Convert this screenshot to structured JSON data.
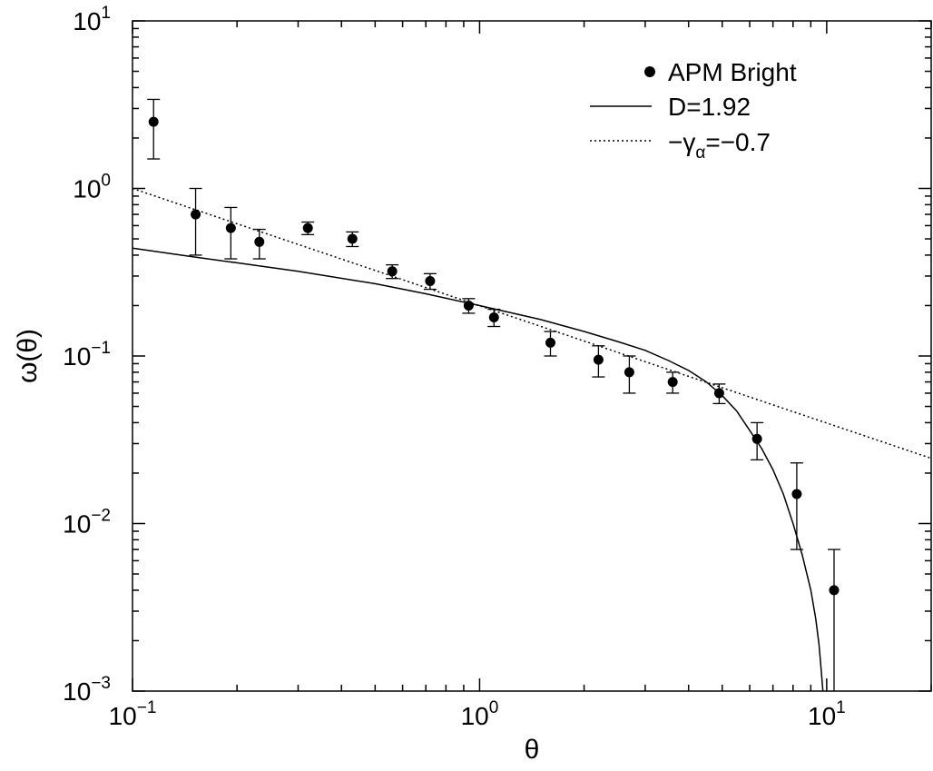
{
  "chart_data": {
    "type": "scatter",
    "xlabel": "θ",
    "ylabel": "ω(θ)",
    "x_scale": "log",
    "y_scale": "log",
    "xlim": [
      0.1,
      20
    ],
    "ylim": [
      0.001,
      10
    ],
    "x_ticks": [
      {
        "value": 0.1,
        "base": "10",
        "exp": "−1"
      },
      {
        "value": 1,
        "base": "10",
        "exp": "0"
      },
      {
        "value": 10,
        "base": "10",
        "exp": "1"
      }
    ],
    "y_ticks": [
      {
        "value": 0.001,
        "base": "10",
        "exp": "−3"
      },
      {
        "value": 0.01,
        "base": "10",
        "exp": "−2"
      },
      {
        "value": 0.1,
        "base": "10",
        "exp": "−1"
      },
      {
        "value": 1,
        "base": "10",
        "exp": "0"
      },
      {
        "value": 10,
        "base": "10",
        "exp": "1"
      }
    ],
    "grid": false,
    "legend_position": "top-right",
    "series": [
      {
        "name": "APM Bright",
        "kind": "points_with_errorbars",
        "points": [
          {
            "x": 0.115,
            "y": 2.5,
            "lo": 1.5,
            "hi": 3.4
          },
          {
            "x": 0.152,
            "y": 0.7,
            "lo": 0.4,
            "hi": 1.0
          },
          {
            "x": 0.192,
            "y": 0.58,
            "lo": 0.38,
            "hi": 0.77
          },
          {
            "x": 0.232,
            "y": 0.48,
            "lo": 0.38,
            "hi": 0.57
          },
          {
            "x": 0.32,
            "y": 0.58,
            "lo": 0.53,
            "hi": 0.63
          },
          {
            "x": 0.43,
            "y": 0.5,
            "lo": 0.45,
            "hi": 0.55
          },
          {
            "x": 0.56,
            "y": 0.32,
            "lo": 0.29,
            "hi": 0.35
          },
          {
            "x": 0.72,
            "y": 0.28,
            "lo": 0.25,
            "hi": 0.31
          },
          {
            "x": 0.93,
            "y": 0.2,
            "lo": 0.18,
            "hi": 0.22
          },
          {
            "x": 1.1,
            "y": 0.17,
            "lo": 0.15,
            "hi": 0.19
          },
          {
            "x": 1.6,
            "y": 0.12,
            "lo": 0.1,
            "hi": 0.14
          },
          {
            "x": 2.2,
            "y": 0.095,
            "lo": 0.075,
            "hi": 0.115
          },
          {
            "x": 2.7,
            "y": 0.08,
            "lo": 0.06,
            "hi": 0.1
          },
          {
            "x": 3.6,
            "y": 0.07,
            "lo": 0.06,
            "hi": 0.08
          },
          {
            "x": 4.9,
            "y": 0.06,
            "lo": 0.052,
            "hi": 0.068
          },
          {
            "x": 6.3,
            "y": 0.032,
            "lo": 0.024,
            "hi": 0.04
          },
          {
            "x": 8.2,
            "y": 0.015,
            "lo": 0.007,
            "hi": 0.023
          },
          {
            "x": 10.5,
            "y": 0.004,
            "lo": 0.0009,
            "hi": 0.007
          }
        ]
      },
      {
        "name": "D=1.92",
        "kind": "solid_line",
        "x": [
          0.1,
          0.15,
          0.2,
          0.3,
          0.5,
          0.7,
          1.0,
          1.5,
          2.0,
          2.5,
          3.0,
          3.5,
          4.0,
          4.5,
          5.0,
          5.5,
          6.0,
          6.5,
          7.0,
          7.5,
          8.0,
          8.5,
          9.0,
          9.3,
          9.5,
          9.65,
          9.75
        ],
        "y": [
          0.44,
          0.39,
          0.36,
          0.32,
          0.27,
          0.235,
          0.2,
          0.165,
          0.14,
          0.122,
          0.108,
          0.094,
          0.082,
          0.07,
          0.058,
          0.047,
          0.036,
          0.028,
          0.021,
          0.015,
          0.01,
          0.0065,
          0.004,
          0.0027,
          0.0019,
          0.0013,
          0.001
        ]
      },
      {
        "name": "−γα=−0.7",
        "kind": "dotted_line",
        "x": [
          0.1,
          20
        ],
        "y": [
          1.0,
          0.0245
        ]
      }
    ],
    "legend": [
      {
        "label": "APM Bright",
        "marker": "dot"
      },
      {
        "label": "D=1.92",
        "marker": "solid"
      },
      {
        "label_main": "−γ",
        "label_sub": "α",
        "label_tail": "=−0.7",
        "marker": "dotted"
      }
    ]
  }
}
